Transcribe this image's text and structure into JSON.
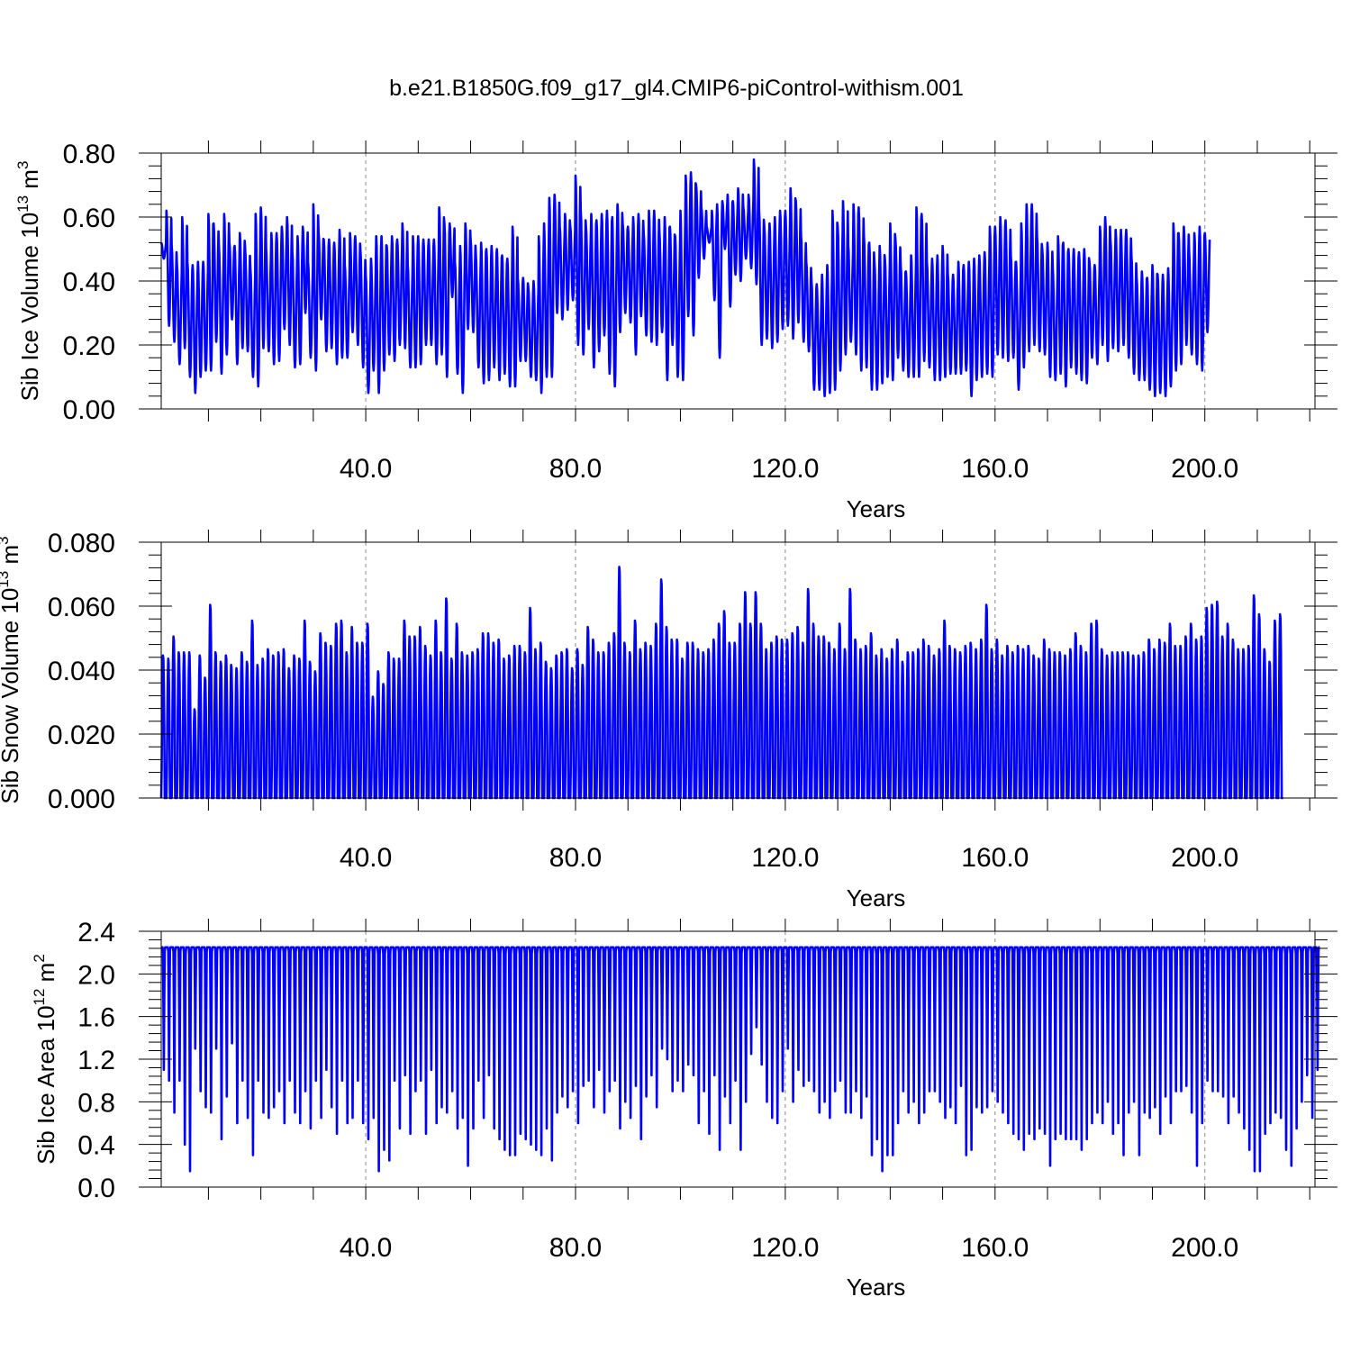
{
  "title": "b.e21.B1850G.f09_g17_gl4.CMIP6-piControl-withism.001",
  "colors": {
    "line": "#0000ff",
    "axis": "#000000",
    "grid": "#888888"
  },
  "chart_data": [
    {
      "type": "line",
      "name": "ice-volume",
      "ylabel": {
        "text": "Sib Ice Volume 10",
        "exp": "13",
        "unit": "m",
        "unit_exp": "3"
      },
      "xlabel": "Years",
      "xlim": [
        1,
        221
      ],
      "ylim": [
        0,
        0.8
      ],
      "xticks": [
        40,
        80,
        120,
        160,
        200
      ],
      "xtick_labels": [
        "40.0",
        "80.0",
        "120.0",
        "160.0",
        "200.0"
      ],
      "yticks": [
        0,
        0.2,
        0.4,
        0.6,
        0.8
      ],
      "ytick_labels": [
        "0.00",
        "0.20",
        "0.40",
        "0.60",
        "0.80"
      ],
      "grid": "vertical dashed at x ticks",
      "annual_max": [
        0.52,
        0.62,
        0.51,
        0.45,
        0.6,
        0.46,
        0.45,
        0.46,
        0.46,
        0.61,
        0.58,
        0.51,
        0.61,
        0.52,
        0.51,
        0.55,
        0.5,
        0.44,
        0.61,
        0.63,
        0.5,
        0.55,
        0.55,
        0.57,
        0.6,
        0.49,
        0.54,
        0.57,
        0.46,
        0.64,
        0.55,
        0.53,
        0.53,
        0.52,
        0.56,
        0.45,
        0.55,
        0.54,
        0.49,
        0.42,
        0.47,
        0.54,
        0.54,
        0.51,
        0.54,
        0.53,
        0.58,
        0.45,
        0.54,
        0.54,
        0.53,
        0.53,
        0.53,
        0.63,
        0.58,
        0.58,
        0.46,
        0.51,
        0.58,
        0.53,
        0.48,
        0.52,
        0.5,
        0.51,
        0.5,
        0.48,
        0.47,
        0.57,
        0.41,
        0.41,
        0.38,
        0.4,
        0.54,
        0.58,
        0.66,
        0.67,
        0.57,
        0.61,
        0.57,
        0.73,
        0.62,
        0.57,
        0.61,
        0.59,
        0.61,
        0.62,
        0.6,
        0.64,
        0.58,
        0.57,
        0.6,
        0.61,
        0.55,
        0.62,
        0.62,
        0.55,
        0.6,
        0.57,
        0.54,
        0.62,
        0.73,
        0.74,
        0.7,
        0.63,
        0.57,
        0.62,
        0.64,
        0.65,
        0.67,
        0.65,
        0.69,
        0.63,
        0.67,
        0.78,
        0.62,
        0.57,
        0.58,
        0.6,
        0.62,
        0.62,
        0.69,
        0.65,
        0.54,
        0.46,
        0.4,
        0.39,
        0.42,
        0.45,
        0.62,
        0.57,
        0.65,
        0.51,
        0.64,
        0.63,
        0.54,
        0.52,
        0.46,
        0.51,
        0.47,
        0.58,
        0.53,
        0.45,
        0.43,
        0.48,
        0.63,
        0.61,
        0.46,
        0.47,
        0.48,
        0.51,
        0.42,
        0.42,
        0.46,
        0.45,
        0.46,
        0.47,
        0.48,
        0.49,
        0.57,
        0.57,
        0.6,
        0.59,
        0.48,
        0.46,
        0.58,
        0.64,
        0.64,
        0.54,
        0.5,
        0.52,
        0.44,
        0.54,
        0.52,
        0.5,
        0.5,
        0.49,
        0.5,
        0.46,
        0.45,
        0.57,
        0.6,
        0.53,
        0.56,
        0.56,
        0.56,
        0.48,
        0.41,
        0.43,
        0.41,
        0.45,
        0.42,
        0.42,
        0.44,
        0.58,
        0.55,
        0.57,
        0.49,
        0.55,
        0.57,
        0.55
      ],
      "annual_min": [
        0.47,
        0.26,
        0.21,
        0.14,
        0.19,
        0.1,
        0.05,
        0.1,
        0.12,
        0.12,
        0.21,
        0.11,
        0.17,
        0.28,
        0.14,
        0.19,
        0.18,
        0.1,
        0.07,
        0.19,
        0.18,
        0.14,
        0.15,
        0.25,
        0.2,
        0.13,
        0.14,
        0.3,
        0.16,
        0.12,
        0.28,
        0.18,
        0.19,
        0.14,
        0.16,
        0.16,
        0.24,
        0.2,
        0.13,
        0.05,
        0.12,
        0.05,
        0.12,
        0.17,
        0.15,
        0.2,
        0.19,
        0.13,
        0.13,
        0.14,
        0.2,
        0.2,
        0.14,
        0.17,
        0.1,
        0.35,
        0.11,
        0.05,
        0.25,
        0.24,
        0.13,
        0.08,
        0.09,
        0.13,
        0.09,
        0.11,
        0.07,
        0.07,
        0.15,
        0.15,
        0.1,
        0.09,
        0.05,
        0.1,
        0.1,
        0.3,
        0.28,
        0.31,
        0.34,
        0.2,
        0.17,
        0.25,
        0.13,
        0.18,
        0.23,
        0.11,
        0.07,
        0.24,
        0.3,
        0.27,
        0.17,
        0.29,
        0.23,
        0.21,
        0.2,
        0.24,
        0.09,
        0.2,
        0.1,
        0.09,
        0.29,
        0.23,
        0.41,
        0.47,
        0.52,
        0.34,
        0.16,
        0.5,
        0.32,
        0.42,
        0.4,
        0.47,
        0.44,
        0.39,
        0.2,
        0.22,
        0.19,
        0.21,
        0.25,
        0.26,
        0.22,
        0.27,
        0.21,
        0.18,
        0.06,
        0.06,
        0.04,
        0.05,
        0.06,
        0.12,
        0.17,
        0.21,
        0.17,
        0.12,
        0.13,
        0.06,
        0.06,
        0.08,
        0.1,
        0.09,
        0.16,
        0.12,
        0.1,
        0.1,
        0.1,
        0.15,
        0.13,
        0.09,
        0.09,
        0.1,
        0.11,
        0.11,
        0.11,
        0.12,
        0.04,
        0.09,
        0.1,
        0.11,
        0.1,
        0.17,
        0.16,
        0.15,
        0.16,
        0.06,
        0.13,
        0.18,
        0.2,
        0.18,
        0.17,
        0.1,
        0.09,
        0.11,
        0.07,
        0.13,
        0.11,
        0.09,
        0.08,
        0.16,
        0.14,
        0.2,
        0.15,
        0.19,
        0.18,
        0.2,
        0.16,
        0.11,
        0.09,
        0.09,
        0.06,
        0.04,
        0.05,
        0.04,
        0.07,
        0.12,
        0.14,
        0.2,
        0.17,
        0.14,
        0.12,
        0.24
      ]
    },
    {
      "type": "line",
      "name": "snow-volume",
      "ylabel": {
        "text": "Sib Snow Volume 10",
        "exp": "13",
        "unit": "m",
        "unit_exp": "3"
      },
      "xlabel": "Years",
      "xlim": [
        1,
        221
      ],
      "ylim": [
        0,
        0.08
      ],
      "xticks": [
        40,
        80,
        120,
        160,
        200
      ],
      "xtick_labels": [
        "40.0",
        "80.0",
        "120.0",
        "160.0",
        "200.0"
      ],
      "yticks": [
        0,
        0.02,
        0.04,
        0.06,
        0.08
      ],
      "ytick_labels": [
        "0.000",
        "0.020",
        "0.040",
        "0.060",
        "0.080"
      ],
      "grid": "vertical dashed at x ticks",
      "annual_max": [
        0.045,
        0.044,
        0.051,
        0.046,
        0.046,
        0.046,
        0.028,
        0.045,
        0.038,
        0.061,
        0.046,
        0.043,
        0.045,
        0.042,
        0.041,
        0.046,
        0.043,
        0.056,
        0.042,
        0.044,
        0.047,
        0.045,
        0.046,
        0.047,
        0.041,
        0.045,
        0.044,
        0.056,
        0.043,
        0.04,
        0.052,
        0.049,
        0.048,
        0.055,
        0.056,
        0.046,
        0.054,
        0.049,
        0.049,
        0.055,
        0.032,
        0.04,
        0.036,
        0.046,
        0.044,
        0.044,
        0.056,
        0.051,
        0.051,
        0.054,
        0.048,
        0.045,
        0.056,
        0.046,
        0.063,
        0.044,
        0.055,
        0.046,
        0.045,
        0.046,
        0.047,
        0.052,
        0.052,
        0.049,
        0.05,
        0.044,
        0.045,
        0.048,
        0.048,
        0.046,
        0.06,
        0.047,
        0.049,
        0.043,
        0.041,
        0.045,
        0.046,
        0.047,
        0.041,
        0.047,
        0.042,
        0.054,
        0.05,
        0.046,
        0.046,
        0.049,
        0.052,
        0.073,
        0.049,
        0.046,
        0.056,
        0.047,
        0.049,
        0.048,
        0.055,
        0.069,
        0.054,
        0.05,
        0.05,
        0.044,
        0.049,
        0.049,
        0.047,
        0.046,
        0.047,
        0.05,
        0.055,
        0.059,
        0.049,
        0.049,
        0.055,
        0.065,
        0.055,
        0.065,
        0.055,
        0.047,
        0.049,
        0.051,
        0.05,
        0.05,
        0.052,
        0.054,
        0.049,
        0.066,
        0.055,
        0.051,
        0.051,
        0.049,
        0.047,
        0.055,
        0.047,
        0.066,
        0.05,
        0.047,
        0.048,
        0.052,
        0.045,
        0.047,
        0.044,
        0.047,
        0.05,
        0.043,
        0.046,
        0.046,
        0.047,
        0.05,
        0.048,
        0.045,
        0.047,
        0.056,
        0.048,
        0.047,
        0.046,
        0.048,
        0.049,
        0.047,
        0.05,
        0.061,
        0.047,
        0.05,
        0.045,
        0.048,
        0.046,
        0.048,
        0.047,
        0.048,
        0.045,
        0.044,
        0.05,
        0.047,
        0.046,
        0.046,
        0.045,
        0.047,
        0.052,
        0.048,
        0.046,
        0.055,
        0.056,
        0.047,
        0.045,
        0.046,
        0.046,
        0.046,
        0.046,
        0.045,
        0.045,
        0.046,
        0.05,
        0.047,
        0.05,
        0.049,
        0.055,
        0.048,
        0.048,
        0.051,
        0.055,
        0.05,
        0.051,
        0.06,
        0.061,
        0.062,
        0.051,
        0.055,
        0.05,
        0.047,
        0.047,
        0.048,
        0.064,
        0.058,
        0.047,
        0.043,
        0.056,
        0.058
      ]
    },
    {
      "type": "line",
      "name": "ice-area",
      "ylabel": {
        "text": "Sib Ice Area 10",
        "exp": "12",
        "unit": "m",
        "unit_exp": "2"
      },
      "xlabel": "Years",
      "xlim": [
        1,
        221
      ],
      "ylim": [
        0,
        2.4
      ],
      "xticks": [
        40,
        80,
        120,
        160,
        200
      ],
      "xtick_labels": [
        "40.0",
        "80.0",
        "120.0",
        "160.0",
        "200.0"
      ],
      "yticks": [
        0,
        0.4,
        0.8,
        1.2,
        1.6,
        2.0,
        2.4
      ],
      "ytick_labels": [
        "0.0",
        "0.4",
        "0.8",
        "1.2",
        "1.6",
        "2.0",
        "2.4"
      ],
      "grid": "vertical dashed at x ticks",
      "annual_max": 2.25,
      "annual_min": [
        1.1,
        1.0,
        0.7,
        1.0,
        0.4,
        0.15,
        1.3,
        0.9,
        0.75,
        0.7,
        1.3,
        0.45,
        0.85,
        1.35,
        0.6,
        1.0,
        0.65,
        0.3,
        1.0,
        0.7,
        0.65,
        0.75,
        0.9,
        0.6,
        1.0,
        0.7,
        0.6,
        0.9,
        0.55,
        1.0,
        0.65,
        1.1,
        0.75,
        0.5,
        1.0,
        0.6,
        0.65,
        1.0,
        0.6,
        0.45,
        0.65,
        0.15,
        0.35,
        0.25,
        1.0,
        0.55,
        1.05,
        0.5,
        0.9,
        1.0,
        0.5,
        1.1,
        0.6,
        0.75,
        0.7,
        0.9,
        0.55,
        0.65,
        0.2,
        0.55,
        1.0,
        0.65,
        1.05,
        0.55,
        0.45,
        0.35,
        0.3,
        0.3,
        0.5,
        0.45,
        0.4,
        0.35,
        0.3,
        0.55,
        0.25,
        0.7,
        0.85,
        0.75,
        0.9,
        0.6,
        0.95,
        1.0,
        0.75,
        1.1,
        0.7,
        0.9,
        1.0,
        0.55,
        0.8,
        0.65,
        0.95,
        0.45,
        0.85,
        1.05,
        0.75,
        1.3,
        1.2,
        0.9,
        1.0,
        0.9,
        1.15,
        1.05,
        0.6,
        0.9,
        0.5,
        1.05,
        0.35,
        0.85,
        0.6,
        1.0,
        0.35,
        0.8,
        1.25,
        1.5,
        1.15,
        0.8,
        0.65,
        0.6,
        0.9,
        1.3,
        0.8,
        1.1,
        0.95,
        1.0,
        0.9,
        0.7,
        0.8,
        0.65,
        0.9,
        1.0,
        0.7,
        0.7,
        0.9,
        0.65,
        0.85,
        0.3,
        0.45,
        0.15,
        0.3,
        0.3,
        0.6,
        0.9,
        0.7,
        0.8,
        0.6,
        0.7,
        0.9,
        0.9,
        0.8,
        0.65,
        0.75,
        0.6,
        0.95,
        0.3,
        0.35,
        0.75,
        0.7,
        0.75,
        0.9,
        0.8,
        0.7,
        0.6,
        0.5,
        0.45,
        0.35,
        0.5,
        0.45,
        0.55,
        0.5,
        0.2,
        0.45,
        0.5,
        0.45,
        0.45,
        0.45,
        0.35,
        0.45,
        0.6,
        0.7,
        0.6,
        0.8,
        0.5,
        0.6,
        0.3,
        0.7,
        0.8,
        0.3,
        0.7,
        0.65,
        0.75,
        0.5,
        0.85,
        0.6,
        0.9,
        0.9,
        0.95,
        0.7,
        0.2,
        0.6,
        1.0,
        0.9,
        0.9,
        0.85,
        0.6,
        0.85,
        0.7,
        0.55,
        0.35,
        0.15,
        0.15,
        0.5,
        0.6,
        0.7,
        0.65,
        0.35,
        0.2,
        0.55,
        0.8,
        1.05,
        0.65,
        1.1
      ]
    }
  ]
}
